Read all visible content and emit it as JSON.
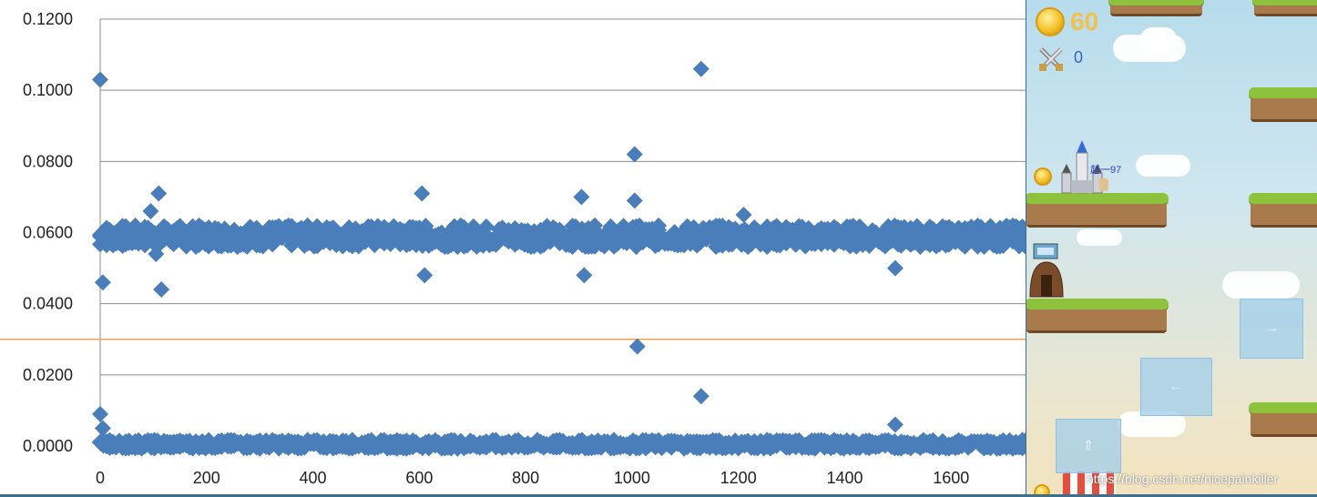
{
  "chart_data": {
    "type": "scatter",
    "title": "",
    "xlabel": "",
    "ylabel": "",
    "xlim": [
      0,
      1740
    ],
    "ylim": [
      0,
      0.12
    ],
    "x_ticks": [
      "0",
      "200",
      "400",
      "600",
      "800",
      "1000",
      "1200",
      "1400",
      "1600"
    ],
    "y_ticks": [
      "0.0000",
      "0.0200",
      "0.0400",
      "0.0600",
      "0.0800",
      "0.1000",
      "0.1200"
    ],
    "grid": "horizontal",
    "series": [
      {
        "color": "#4a7ebb",
        "marker": "diamond",
        "points": [
          {
            "x": 0,
            "y": 0.103
          },
          {
            "x": 5,
            "y": 0.046
          },
          {
            "x": 0,
            "y": 0.009
          },
          {
            "x": 5,
            "y": 0.005
          },
          {
            "x": 95,
            "y": 0.066
          },
          {
            "x": 110,
            "y": 0.071
          },
          {
            "x": 115,
            "y": 0.044
          },
          {
            "x": 105,
            "y": 0.054
          },
          {
            "x": 605,
            "y": 0.071
          },
          {
            "x": 610,
            "y": 0.048
          },
          {
            "x": 905,
            "y": 0.07
          },
          {
            "x": 910,
            "y": 0.048
          },
          {
            "x": 1005,
            "y": 0.082
          },
          {
            "x": 1005,
            "y": 0.069
          },
          {
            "x": 1010,
            "y": 0.028
          },
          {
            "x": 1130,
            "y": 0.106
          },
          {
            "x": 1130,
            "y": 0.014
          },
          {
            "x": 1210,
            "y": 0.065
          },
          {
            "x": 1495,
            "y": 0.05
          },
          {
            "x": 1495,
            "y": 0.006
          }
        ],
        "bands": [
          {
            "x_from": 0,
            "x_to": 1740,
            "y_center": 0.059,
            "spread": 0.003
          },
          {
            "x_from": 0,
            "x_to": 1740,
            "y_center": 0.0005,
            "spread": 0.0012
          }
        ]
      }
    ],
    "threshold_line": {
      "y": 0.03,
      "color": "#f0a050"
    }
  },
  "game": {
    "coins": "60",
    "kills": "0",
    "player_name": "赵一97",
    "watermark": "https://blog.csdn.net/nicepainkiller",
    "icons": [
      "coin-icon",
      "crossed-swords-icon",
      "arrow-right-icon",
      "arrow-left-icon",
      "jump-icon",
      "castle-icon",
      "hut-icon",
      "shop-icon"
    ]
  },
  "colors": {
    "marker": "#4a7ebb",
    "grid": "#8c8c8c",
    "threshold": "#f0a050",
    "coin_text": "#f3c04c",
    "kill_text": "#3a62c9"
  }
}
